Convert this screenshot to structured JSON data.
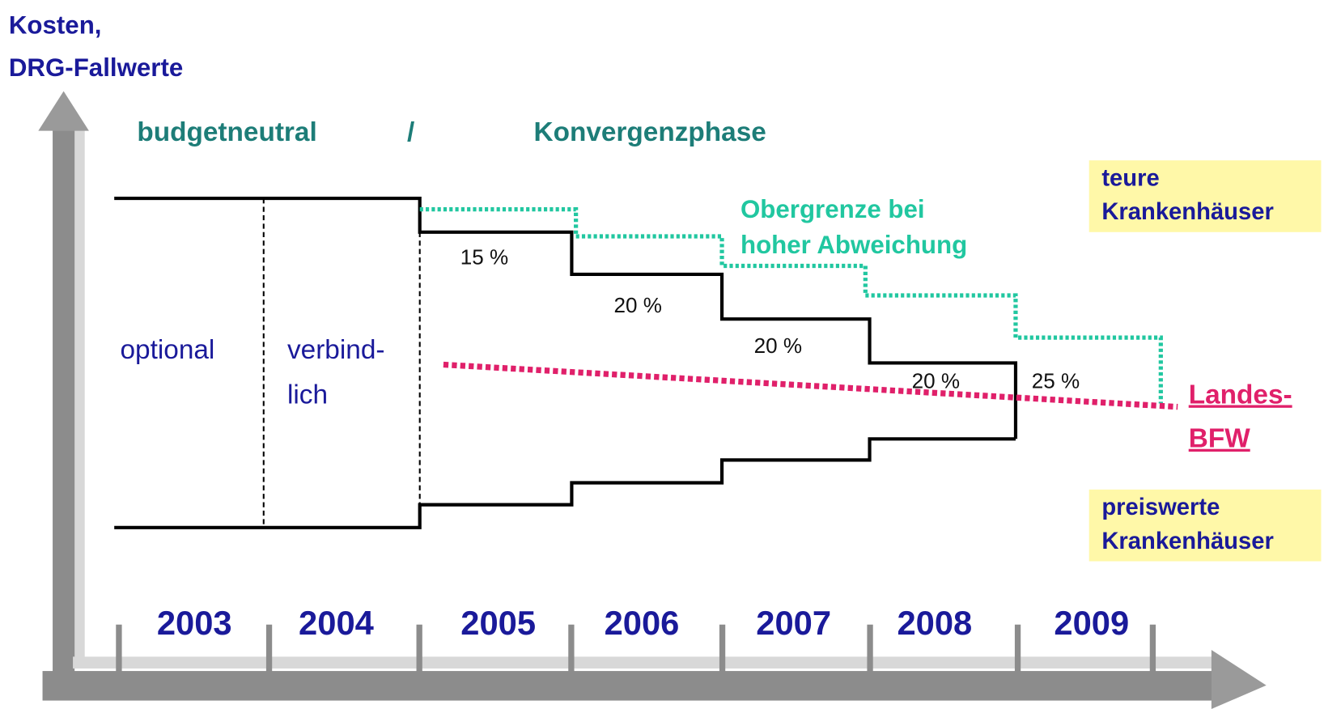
{
  "axis_label": [
    "Kosten,",
    "DRG-Fallwerte"
  ],
  "phases": [
    "budgetneutral",
    "/",
    "Konvergenzphase"
  ],
  "upper_limit_label": [
    "Obergrenze bei",
    "hoher Abweichung"
  ],
  "segments": [
    "optional",
    "verbind-",
    "lich"
  ],
  "percentages": [
    "15 %",
    "20 %",
    "20 %",
    "20 %",
    "25 %"
  ],
  "years": [
    "2003",
    "2004",
    "2005",
    "2006",
    "2007",
    "2008",
    "2009"
  ],
  "expensive_label": [
    "teure",
    "Krankenhäuser"
  ],
  "cheap_label": [
    "preiswerte",
    "Krankenhäuser"
  ],
  "base_rate_label": [
    "Landes-",
    "BFW"
  ]
}
